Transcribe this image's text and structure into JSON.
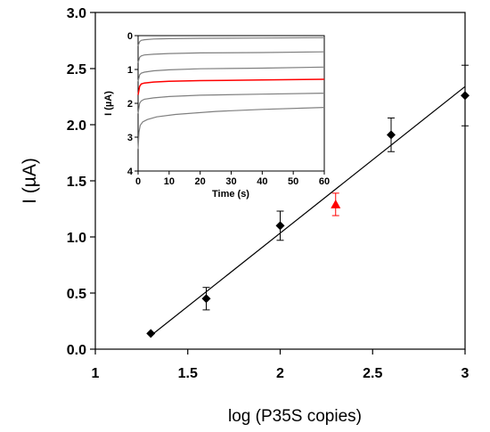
{
  "chart_data": [
    {
      "type": "scatter",
      "title": "",
      "xlabel": "log (P35S copies)",
      "ylabel": "I (µA)",
      "xlim": [
        1,
        3
      ],
      "ylim": [
        0,
        3
      ],
      "xticks": [
        "1",
        "1.5",
        "2",
        "2.5",
        "3"
      ],
      "yticks": [
        "0.0",
        "0.5",
        "1.0",
        "1.5",
        "2.0",
        "2.5",
        "3.0"
      ],
      "grid": false,
      "series": [
        {
          "marker": "diamond",
          "color": "#000000",
          "x": [
            1.3,
            1.6,
            2.0,
            2.6,
            3.0
          ],
          "y": [
            0.14,
            0.45,
            1.1,
            1.91,
            2.26
          ],
          "error": [
            0.0,
            0.1,
            0.13,
            0.15,
            0.27
          ]
        },
        {
          "marker": "triangle",
          "color": "#ff0000",
          "x": [
            2.3
          ],
          "y": [
            1.29
          ],
          "error": [
            0.1
          ]
        }
      ],
      "fit_line": {
        "x": [
          1.3,
          3.0
        ],
        "y": [
          0.12,
          2.34
        ],
        "color": "#000000"
      }
    },
    {
      "type": "line",
      "title": "",
      "xlabel": "Time (s)",
      "ylabel": "I (µA)",
      "xlim": [
        0,
        60
      ],
      "ylim": [
        0,
        4
      ],
      "y_inverted": true,
      "xticks": [
        "0",
        "10",
        "20",
        "30",
        "40",
        "50",
        "60"
      ],
      "yticks": [
        "0",
        "1",
        "2",
        "3",
        "4"
      ],
      "grid": false,
      "series": [
        {
          "color": "#7f7f7f",
          "x": [
            0,
            0.5,
            1,
            2,
            5,
            10,
            20,
            40,
            60
          ],
          "y": [
            0.3,
            0.18,
            0.14,
            0.12,
            0.1,
            0.09,
            0.08,
            0.07,
            0.06
          ]
        },
        {
          "color": "#7f7f7f",
          "x": [
            0,
            0.5,
            1,
            2,
            5,
            10,
            20,
            40,
            60
          ],
          "y": [
            0.8,
            0.64,
            0.6,
            0.57,
            0.55,
            0.53,
            0.51,
            0.5,
            0.48
          ]
        },
        {
          "color": "#7f7f7f",
          "x": [
            0,
            0.5,
            1,
            2,
            5,
            10,
            20,
            40,
            60
          ],
          "y": [
            1.35,
            1.16,
            1.11,
            1.08,
            1.04,
            1.01,
            0.98,
            0.96,
            0.93
          ]
        },
        {
          "color": "#ff0000",
          "x": [
            0,
            0.5,
            1,
            2,
            5,
            10,
            20,
            40,
            60
          ],
          "y": [
            1.75,
            1.5,
            1.43,
            1.4,
            1.37,
            1.35,
            1.33,
            1.31,
            1.29
          ]
        },
        {
          "color": "#7f7f7f",
          "x": [
            0,
            0.5,
            1,
            2,
            5,
            10,
            20,
            40,
            60
          ],
          "y": [
            2.3,
            2.0,
            1.93,
            1.88,
            1.84,
            1.8,
            1.76,
            1.73,
            1.7
          ]
        },
        {
          "color": "#7f7f7f",
          "x": [
            0,
            0.3,
            0.7,
            1.5,
            3,
            6,
            12,
            25,
            40,
            60
          ],
          "y": [
            3.35,
            2.85,
            2.65,
            2.55,
            2.48,
            2.4,
            2.33,
            2.24,
            2.18,
            2.12
          ]
        }
      ]
    }
  ]
}
